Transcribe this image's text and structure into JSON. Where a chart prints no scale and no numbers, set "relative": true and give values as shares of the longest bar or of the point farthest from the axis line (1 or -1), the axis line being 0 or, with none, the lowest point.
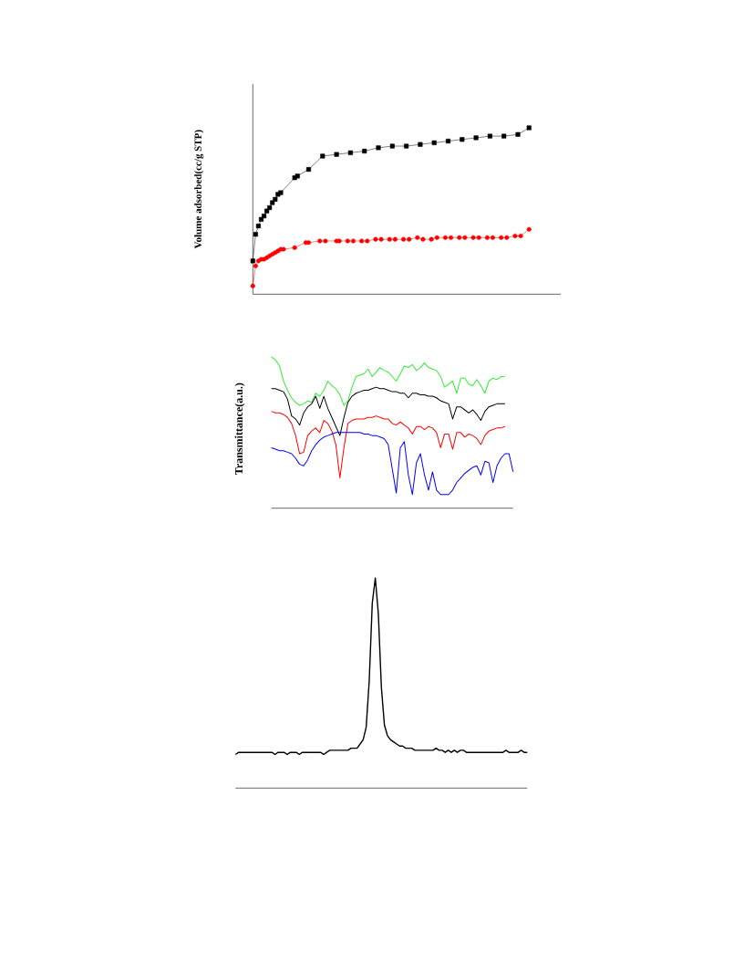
{
  "chart_data": [
    {
      "type": "line",
      "relative": true,
      "ylabel": "Volume adsorbed(cc/g STP)",
      "categories": [
        null,
        null,
        null,
        null,
        null,
        null,
        null,
        null,
        null,
        null,
        null,
        null,
        null,
        null,
        null,
        null,
        null,
        null,
        null,
        null,
        null,
        null,
        null,
        null,
        null,
        null,
        null,
        null,
        null,
        null,
        null,
        null,
        null,
        null,
        null,
        null,
        null,
        null,
        null,
        null,
        null,
        null,
        null,
        null,
        null,
        null,
        null,
        null,
        null,
        null,
        null,
        null,
        null,
        null,
        null,
        null,
        null,
        null,
        null,
        null,
        null,
        null,
        null,
        null,
        null,
        null,
        null,
        null,
        null,
        null,
        null,
        null,
        null,
        null,
        null,
        null,
        null,
        null,
        null,
        null,
        null,
        null,
        null,
        null,
        null,
        null,
        null,
        null,
        null,
        null,
        null,
        null,
        null,
        null,
        null,
        null,
        null,
        null,
        null,
        null,
        null
      ],
      "series": [
        {
          "color": "#000000",
          "marker": "square",
          "values": [
            0.2,
            0.36,
            0.41,
            0.45,
            0.47,
            0.5,
            0.52,
            0.55,
            0.57,
            0.6,
            0.61,
            null,
            null,
            null,
            null,
            0.7,
            0.71,
            null,
            null,
            null,
            0.75,
            null,
            null,
            null,
            null,
            0.83,
            null,
            null,
            null,
            null,
            0.84,
            null,
            null,
            null,
            null,
            0.85,
            null,
            null,
            null,
            null,
            0.86,
            null,
            null,
            null,
            null,
            0.88,
            null,
            null,
            null,
            null,
            0.89,
            null,
            null,
            null,
            null,
            0.89,
            null,
            null,
            null,
            null,
            0.9,
            null,
            null,
            null,
            null,
            0.91,
            null,
            null,
            null,
            null,
            0.92,
            null,
            null,
            null,
            null,
            0.93,
            null,
            null,
            null,
            null,
            0.94,
            null,
            null,
            null,
            null,
            0.95,
            null,
            null,
            null,
            null,
            0.95,
            null,
            null,
            null,
            null,
            0.96,
            null,
            null,
            null,
            1.0,
            null
          ]
        },
        {
          "color": "#ff0000",
          "marker": "circle",
          "values": [
            0.05,
            0.17,
            0.2,
            0.21,
            0.21,
            0.22,
            0.23,
            0.24,
            0.25,
            0.26,
            0.27,
            0.27,
            null,
            null,
            null,
            0.28,
            null,
            null,
            null,
            0.31,
            0.31,
            null,
            null,
            null,
            0.32,
            null,
            0.32,
            null,
            null,
            null,
            0.32,
            0.32,
            null,
            null,
            0.32,
            null,
            0.32,
            null,
            null,
            0.32,
            null,
            0.32,
            null,
            null,
            0.33,
            null,
            0.33,
            null,
            null,
            0.33,
            null,
            0.33,
            null,
            null,
            0.33,
            null,
            0.33,
            null,
            null,
            0.34,
            null,
            0.33,
            null,
            null,
            0.33,
            null,
            0.34,
            null,
            null,
            0.34,
            null,
            0.34,
            null,
            null,
            0.34,
            null,
            0.34,
            null,
            null,
            0.34,
            null,
            0.34,
            null,
            null,
            0.34,
            null,
            0.34,
            null,
            null,
            0.34,
            null,
            0.34,
            null,
            null,
            0.35,
            null,
            0.35,
            null,
            null,
            0.39,
            null
          ]
        }
      ]
    },
    {
      "type": "line",
      "relative": true,
      "ylabel": "Transmittance(a.u.)",
      "categories": [
        null,
        null,
        null,
        null,
        null,
        null,
        null,
        null,
        null,
        null,
        null,
        null,
        null,
        null,
        null,
        null,
        null,
        null,
        null,
        null,
        null,
        null,
        null,
        null,
        null,
        null,
        null,
        null,
        null,
        null,
        null,
        null,
        null,
        null,
        null,
        null,
        null,
        null,
        null,
        null,
        null,
        null,
        null,
        null,
        null,
        null,
        null,
        null,
        null,
        null,
        null,
        null,
        null,
        null,
        null,
        null,
        null,
        null,
        null,
        null,
        null
      ],
      "series": [
        {
          "color": "#33ee33",
          "values": [
            1.0,
            0.98,
            0.94,
            0.84,
            0.78,
            0.73,
            0.7,
            0.68,
            0.69,
            0.71,
            0.7,
            0.76,
            0.74,
            0.78,
            0.84,
            0.81,
            0.79,
            0.75,
            0.68,
            0.71,
            0.8,
            0.87,
            0.88,
            0.89,
            0.92,
            0.87,
            0.9,
            0.93,
            0.91,
            0.9,
            0.87,
            0.84,
            0.89,
            0.94,
            0.93,
            0.95,
            0.91,
            0.93,
            0.96,
            0.93,
            0.92,
            0.91,
            0.87,
            0.8,
            0.82,
            0.84,
            0.76,
            0.86,
            0.86,
            0.82,
            0.81,
            0.85,
            0.81,
            0.76,
            0.84,
            0.86,
            0.85,
            0.87,
            0.87,
            null,
            null
          ]
        },
        {
          "color": "#000000",
          "values": [
            0.79,
            0.79,
            0.78,
            0.77,
            0.72,
            0.61,
            0.59,
            0.55,
            0.63,
            0.67,
            0.69,
            0.74,
            0.66,
            0.74,
            0.66,
            0.6,
            0.54,
            0.48,
            0.6,
            0.7,
            0.74,
            0.76,
            0.77,
            0.78,
            0.78,
            0.79,
            0.8,
            0.79,
            0.79,
            0.78,
            0.77,
            0.77,
            0.76,
            0.76,
            0.73,
            0.76,
            0.76,
            0.75,
            0.75,
            0.74,
            0.74,
            0.73,
            0.71,
            0.7,
            0.69,
            0.59,
            0.67,
            0.67,
            0.65,
            0.63,
            0.65,
            0.62,
            0.58,
            0.64,
            0.67,
            0.68,
            0.69,
            0.69,
            0.69,
            null,
            null
          ]
        },
        {
          "color": "#ff0000",
          "values": [
            0.64,
            0.63,
            0.63,
            0.62,
            0.6,
            0.56,
            0.48,
            0.36,
            0.37,
            0.48,
            0.51,
            0.53,
            0.5,
            0.58,
            0.56,
            0.51,
            0.42,
            0.2,
            0.4,
            0.56,
            0.58,
            0.59,
            0.59,
            0.59,
            0.6,
            0.6,
            0.61,
            0.6,
            0.59,
            0.59,
            0.56,
            0.55,
            0.57,
            0.55,
            0.53,
            0.49,
            0.54,
            0.54,
            0.52,
            0.54,
            0.53,
            0.5,
            0.4,
            0.49,
            0.49,
            0.39,
            0.5,
            0.5,
            0.47,
            0.49,
            0.48,
            0.46,
            0.42,
            0.48,
            0.51,
            0.52,
            0.53,
            0.53,
            0.54,
            null,
            null
          ]
        },
        {
          "color": "#0000ff",
          "values": [
            0.4,
            0.39,
            0.38,
            0.38,
            0.37,
            0.36,
            0.33,
            0.29,
            0.28,
            0.32,
            0.38,
            0.42,
            0.45,
            0.47,
            0.48,
            0.49,
            0.5,
            0.5,
            0.5,
            0.5,
            0.5,
            0.5,
            0.5,
            0.49,
            0.49,
            0.48,
            0.48,
            0.47,
            0.46,
            0.42,
            0.26,
            0.1,
            0.4,
            0.44,
            0.22,
            0.09,
            0.3,
            0.36,
            0.22,
            0.12,
            0.24,
            0.12,
            0.09,
            0.09,
            0.09,
            0.12,
            0.17,
            0.2,
            0.23,
            0.25,
            0.27,
            0.28,
            0.22,
            0.31,
            0.3,
            0.17,
            0.28,
            0.33,
            0.36,
            0.36,
            0.24
          ]
        }
      ]
    },
    {
      "type": "line",
      "relative": true,
      "color": "#000000",
      "categories": [
        null,
        null,
        null,
        null,
        null,
        null,
        null,
        null,
        null,
        null,
        null,
        null,
        null,
        null,
        null,
        null,
        null,
        null,
        null,
        null,
        null,
        null,
        null,
        null,
        null,
        null,
        null,
        null,
        null,
        null,
        null,
        null,
        null,
        null,
        null,
        null,
        null,
        null,
        null,
        null,
        null,
        null,
        null,
        null,
        null,
        null,
        null,
        null,
        null,
        null,
        null,
        null,
        null,
        null,
        null,
        null,
        null,
        null,
        null,
        null,
        null,
        null,
        null,
        null,
        null,
        null,
        null,
        null,
        null,
        null,
        null,
        null,
        null,
        null,
        null,
        null,
        null,
        null,
        null,
        null,
        null,
        null,
        null,
        null,
        null,
        null,
        null,
        null,
        null,
        null,
        null,
        null,
        null,
        null,
        null,
        null,
        null
      ],
      "values": [
        0.16,
        0.17,
        0.17,
        0.17,
        0.17,
        0.17,
        0.17,
        0.17,
        0.17,
        0.17,
        0.17,
        0.17,
        0.17,
        0.16,
        0.17,
        0.17,
        0.17,
        0.16,
        0.17,
        0.17,
        0.17,
        0.16,
        0.17,
        0.17,
        0.17,
        0.17,
        0.17,
        0.17,
        0.17,
        0.16,
        0.17,
        0.18,
        0.18,
        0.18,
        0.18,
        0.18,
        0.18,
        0.18,
        0.19,
        0.19,
        0.19,
        0.21,
        0.23,
        0.29,
        0.51,
        0.88,
        1.0,
        0.83,
        0.48,
        0.3,
        0.25,
        0.23,
        0.22,
        0.21,
        0.2,
        0.2,
        0.19,
        0.19,
        0.19,
        0.18,
        0.18,
        0.18,
        0.18,
        0.18,
        0.18,
        0.18,
        0.19,
        0.18,
        0.18,
        0.17,
        0.18,
        0.17,
        0.18,
        0.17,
        0.18,
        0.18,
        0.17,
        0.17,
        0.17,
        0.17,
        0.17,
        0.17,
        0.17,
        0.17,
        0.17,
        0.17,
        0.17,
        0.17,
        0.17,
        0.18,
        0.17,
        0.17,
        0.17,
        0.17,
        0.18,
        0.17,
        0.17
      ]
    }
  ]
}
